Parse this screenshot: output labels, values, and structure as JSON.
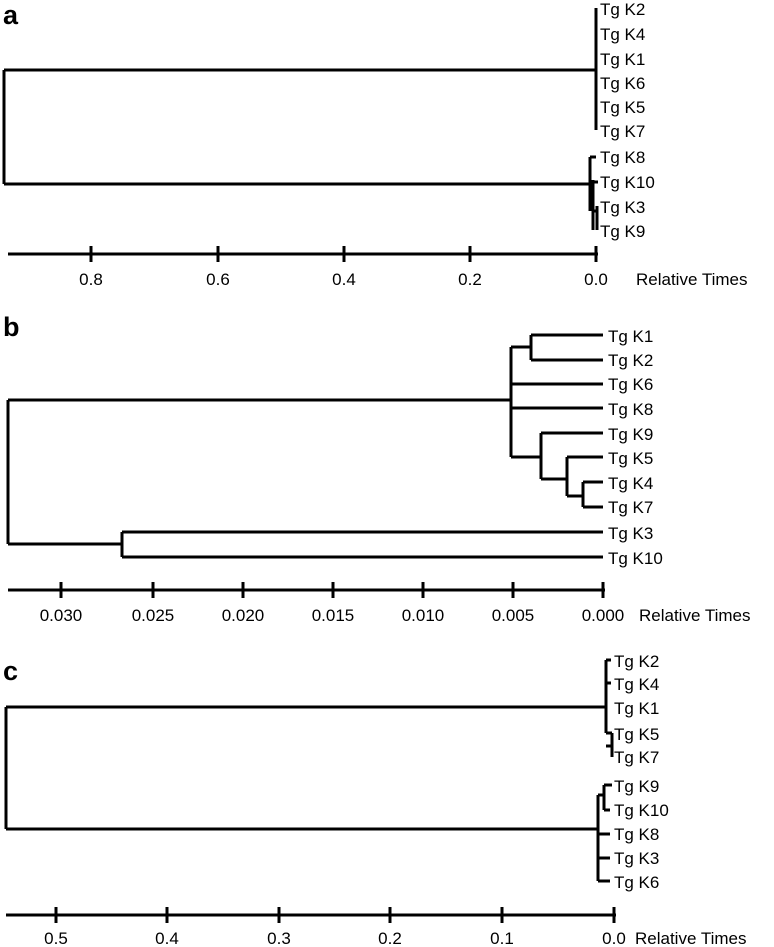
{
  "panels": [
    {
      "label": "a",
      "axis": {
        "title": "Relative Times",
        "ticks": [
          {
            "value": 0.8,
            "label": "0.8"
          },
          {
            "value": 0.6,
            "label": "0.6"
          },
          {
            "value": 0.4,
            "label": "0.4"
          },
          {
            "value": 0.2,
            "label": "0.2"
          },
          {
            "value": 0.0,
            "label": "0.0"
          }
        ]
      },
      "leaves": [
        "Tg K2",
        "Tg K4",
        "Tg K1",
        "Tg K6",
        "Tg K5",
        "Tg K7",
        "Tg K8",
        "Tg K10",
        "Tg K3",
        "Tg K9"
      ],
      "node_times": {
        "root": 0.93,
        "clade_k2_k7": 0.004,
        "clade_k8_k9": 0.01,
        "subclade_k10_k9": 0.002,
        "subclade_k3_k9": 0.001
      }
    },
    {
      "label": "b",
      "axis": {
        "title": "Relative Times",
        "ticks": [
          {
            "value": 0.03,
            "label": "0.030"
          },
          {
            "value": 0.025,
            "label": "0.025"
          },
          {
            "value": 0.02,
            "label": "0.020"
          },
          {
            "value": 0.015,
            "label": "0.015"
          },
          {
            "value": 0.01,
            "label": "0.010"
          },
          {
            "value": 0.005,
            "label": "0.005"
          },
          {
            "value": 0.0,
            "label": "0.000"
          }
        ]
      },
      "leaves": [
        "Tg K1",
        "Tg K2",
        "Tg K6",
        "Tg K8",
        "Tg K9",
        "Tg K5",
        "Tg K4",
        "Tg K7",
        "Tg K3",
        "Tg K10"
      ],
      "node_times": {
        "root": 0.033,
        "k3_k10": 0.0267,
        "big_clade": 0.0053,
        "k1_k2": 0.0038,
        "k9_clade": 0.0033,
        "k5_clade": 0.0022,
        "k4_k7": 0.0012
      }
    },
    {
      "label": "c",
      "axis": {
        "title": "Relative Times",
        "ticks": [
          {
            "value": 0.5,
            "label": "0.5"
          },
          {
            "value": 0.4,
            "label": "0.4"
          },
          {
            "value": 0.3,
            "label": "0.3"
          },
          {
            "value": 0.2,
            "label": "0.2"
          },
          {
            "value": 0.1,
            "label": "0.1"
          },
          {
            "value": 0.0,
            "label": "0.0"
          }
        ]
      },
      "leaves": [
        "Tg K2",
        "Tg K4",
        "Tg K1",
        "Tg K5",
        "Tg K7",
        "Tg K9",
        "Tg K10",
        "Tg K8",
        "Tg K3",
        "Tg K6"
      ],
      "node_times": {
        "root": 0.55,
        "clade_k2_k7": 0.008,
        "clade_k9_k6": 0.016
      }
    }
  ]
}
